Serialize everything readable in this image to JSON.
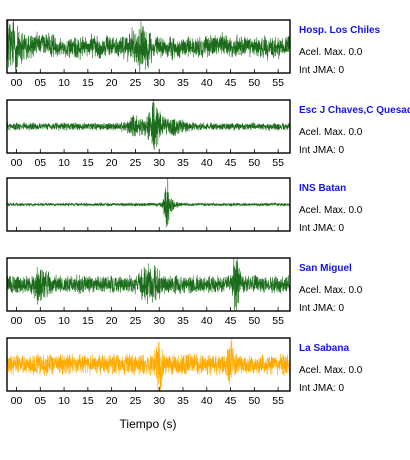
{
  "chart_data": {
    "type": "line",
    "xlabel": "Tiempo (s)",
    "xlim": [
      -2,
      57.5
    ],
    "xticks": [
      "00",
      "05",
      "10",
      "15",
      "20",
      "25",
      "30",
      "35",
      "40",
      "45",
      "50",
      "55"
    ],
    "xtick_values": [
      0,
      5,
      10,
      15,
      20,
      25,
      30,
      35,
      40,
      45,
      50,
      55
    ],
    "grid": false,
    "acel_label": "Acel. Max. 0.0",
    "int_label": "Int JMA: 0",
    "panels": [
      {
        "station": "Hosp. Los Chiles",
        "color": "#1a6b1a",
        "show_xticks": true,
        "amplitude": 0.42,
        "drift": 0.25,
        "bursts": [
          {
            "t": -1,
            "w": 2.5,
            "a": 1.5
          },
          {
            "t": 26,
            "w": 2,
            "a": 1.3
          }
        ]
      },
      {
        "station": "Esc J Chaves,C Quesada",
        "color": "#1a6b1a",
        "show_xticks": true,
        "amplitude": 0.14,
        "drift": 0.0,
        "bursts": [
          {
            "t": 29,
            "w": 1.4,
            "a": 6.5
          },
          {
            "t": 25,
            "w": 2.2,
            "a": 2
          },
          {
            "t": 33,
            "w": 2.5,
            "a": 1.4
          }
        ]
      },
      {
        "station": "INS Batan",
        "color": "#1a6b1a",
        "show_xticks": false,
        "amplitude": 0.06,
        "drift": 0.0,
        "bursts": [
          {
            "t": 31.7,
            "w": 0.6,
            "a": 15
          },
          {
            "t": 32.2,
            "w": 1.6,
            "a": 3
          }
        ]
      },
      {
        "station": "San Miguel",
        "color": "#1a6b1a",
        "show_xticks": true,
        "amplitude": 0.34,
        "drift": 0.0,
        "bursts": [
          {
            "t": 46,
            "w": 0.8,
            "a": 2.7
          },
          {
            "t": 5,
            "w": 1.5,
            "a": 1.5
          },
          {
            "t": 28,
            "w": 2,
            "a": 1.4
          }
        ]
      },
      {
        "station": "La Sabana",
        "color": "#ffaa00",
        "show_xticks": true,
        "amplitude": 0.4,
        "drift": 0.0,
        "bursts": [
          {
            "t": 30,
            "w": 0.7,
            "a": 2.2
          },
          {
            "t": 45,
            "w": 0.7,
            "a": 1.7
          }
        ]
      }
    ]
  }
}
